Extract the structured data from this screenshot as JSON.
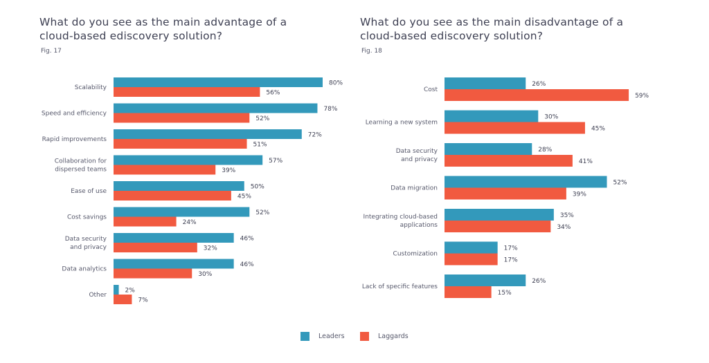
{
  "colors": {
    "leaders": "#3399bb",
    "laggards": "#f15a40"
  },
  "legend": {
    "leaders": "Leaders",
    "laggards": "Laggards"
  },
  "chart_data": [
    {
      "type": "bar",
      "orientation": "horizontal",
      "title": "What do you see as the main advantage of a\ncloud-based ediscovery solution?",
      "fig": "Fig. 17",
      "categories": [
        "Scalability",
        "Speed and efficiency",
        "Rapid improvements",
        "Collaboration for\ndispersed teams",
        "Ease of use",
        "Cost savings",
        "Data security\nand privacy",
        "Data analytics",
        "Other"
      ],
      "series": [
        {
          "name": "Leaders",
          "values": [
            80,
            78,
            72,
            57,
            50,
            52,
            46,
            46,
            2
          ]
        },
        {
          "name": "Laggards",
          "values": [
            56,
            52,
            51,
            39,
            45,
            24,
            32,
            30,
            7
          ]
        }
      ],
      "unit": "%",
      "xlim": [
        0,
        100
      ]
    },
    {
      "type": "bar",
      "orientation": "horizontal",
      "title": "What do you see as the main disadvantage of a\ncloud-based ediscovery solution?",
      "fig": "Fig. 18",
      "categories": [
        "Cost",
        "Learning a new system",
        "Data security\nand privacy",
        "Data migration",
        "Integrating cloud-based\napplications",
        "Customization",
        "Lack of specific features"
      ],
      "series": [
        {
          "name": "Leaders",
          "values": [
            26,
            30,
            28,
            52,
            35,
            17,
            26
          ]
        },
        {
          "name": "Laggards",
          "values": [
            59,
            45,
            41,
            39,
            34,
            17,
            15
          ]
        }
      ],
      "unit": "%",
      "xlim": [
        0,
        100
      ]
    }
  ]
}
